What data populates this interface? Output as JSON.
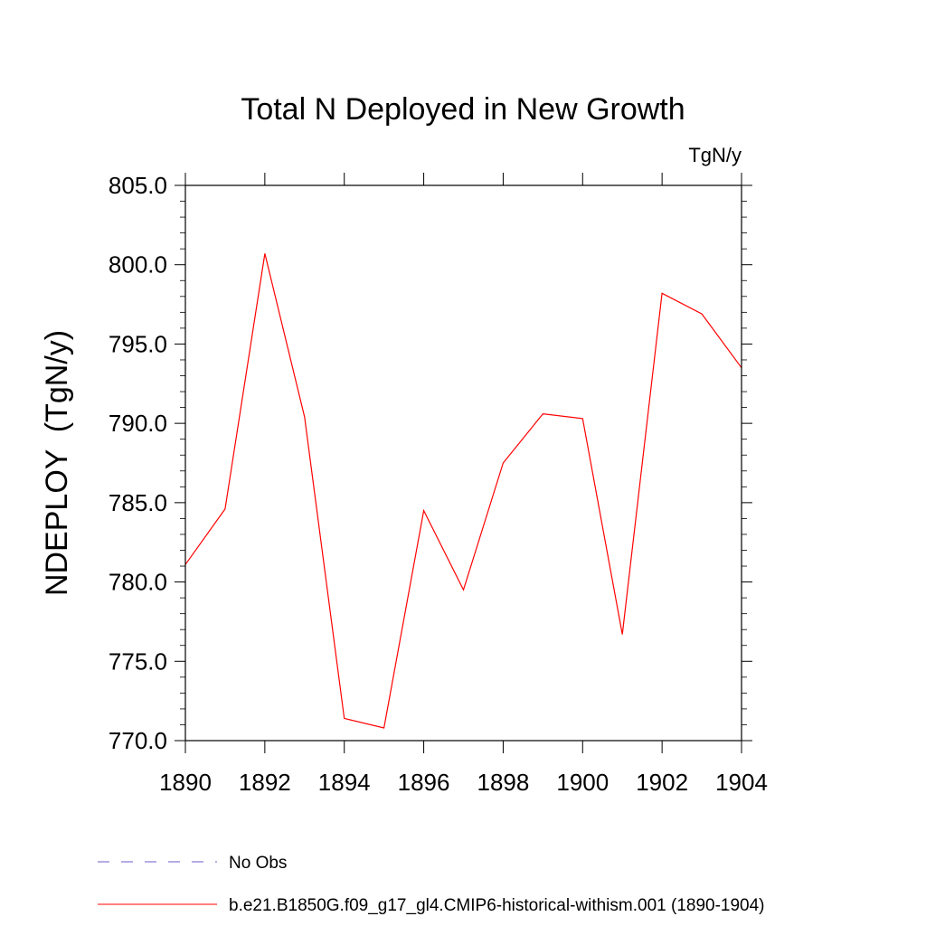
{
  "chart_data": {
    "type": "line",
    "title": "Total N Deployed in New Growth",
    "units": "TgN/y",
    "ylabel": "NDEPLOY  (TgN/y)",
    "xlabel": "",
    "xlim": [
      1890,
      1904
    ],
    "ylim": [
      770.0,
      805.0
    ],
    "x_ticks": [
      1890,
      1892,
      1894,
      1896,
      1898,
      1900,
      1902,
      1904
    ],
    "x_tick_labels": [
      "1890",
      "1892",
      "1894",
      "1896",
      "1898",
      "1900",
      "1902",
      "1904"
    ],
    "y_ticks": [
      770.0,
      775.0,
      780.0,
      785.0,
      790.0,
      795.0,
      800.0,
      805.0
    ],
    "y_tick_labels": [
      "770.0",
      "775.0",
      "780.0",
      "785.0",
      "790.0",
      "795.0",
      "800.0",
      "805.0"
    ],
    "grid": false,
    "series": [
      {
        "name": "b.e21.B1850G.f09_g17_gl4.CMIP6-historical-withism.001 (1890-1904)",
        "color": "#ff0000",
        "style": "solid",
        "x": [
          1890,
          1891,
          1892,
          1893,
          1894,
          1895,
          1896,
          1897,
          1898,
          1899,
          1900,
          1901,
          1902,
          1903,
          1904
        ],
        "values": [
          781.1,
          784.6,
          800.7,
          790.4,
          771.4,
          770.8,
          784.5,
          779.5,
          787.5,
          790.6,
          790.3,
          776.7,
          798.2,
          796.9,
          793.5
        ]
      }
    ],
    "legend": {
      "placement": "bottom-left",
      "entries": [
        {
          "label": "No Obs",
          "color": "#6a5acd",
          "style": "dashed"
        },
        {
          "label": "b.e21.B1850G.f09_g17_gl4.CMIP6-historical-withism.001 (1890-1904)",
          "color": "#ff0000",
          "style": "solid"
        }
      ]
    }
  }
}
